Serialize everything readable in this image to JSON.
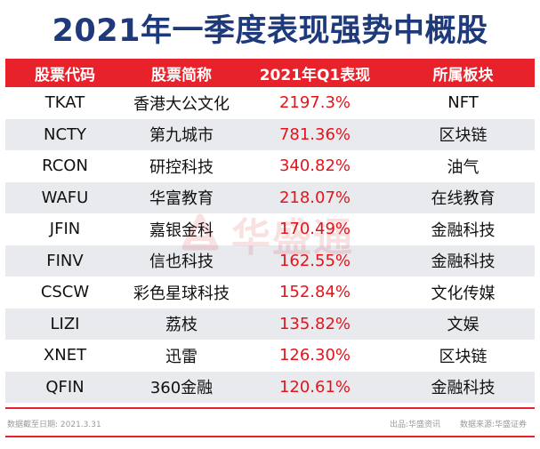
{
  "title": "2021年一季度表现强势中概股",
  "columns": [
    "股票代码",
    "股票简称",
    "2021年Q1表现",
    "所属板块"
  ],
  "rows": [
    {
      "code": "TKAT",
      "name": "香港大公文化",
      "perf": "2197.3%",
      "sector": "NFT"
    },
    {
      "code": "NCTY",
      "name": "第九城市",
      "perf": "781.36%",
      "sector": "区块链"
    },
    {
      "code": "RCON",
      "name": "研控科技",
      "perf": "340.82%",
      "sector": "油气"
    },
    {
      "code": "WAFU",
      "name": "华富教育",
      "perf": "218.07%",
      "sector": "在线教育"
    },
    {
      "code": "JFIN",
      "name": "嘉银金科",
      "perf": "170.49%",
      "sector": "金融科技"
    },
    {
      "code": "FINV",
      "name": "信也科技",
      "perf": "162.55%",
      "sector": "金融科技"
    },
    {
      "code": "CSCW",
      "name": "彩色星球科技",
      "perf": "152.84%",
      "sector": "文化传媒"
    },
    {
      "code": "LIZI",
      "name": "荔枝",
      "perf": "135.82%",
      "sector": "文娱"
    },
    {
      "code": "XNET",
      "name": "迅雷",
      "perf": "126.30%",
      "sector": "区块链"
    },
    {
      "code": "QFIN",
      "name": "360金融",
      "perf": "120.61%",
      "sector": "金融科技"
    }
  ],
  "watermark": "华盛通",
  "footer": {
    "date_label": "数据截至日期:",
    "date_value": "2021.3.31",
    "source_label": "出品:华盛资讯",
    "data_source": "数据来源:华盛证券"
  },
  "colors": {
    "title": "#1f3a7a",
    "header_bg": "#e8222a",
    "performance_text": "#e4141b",
    "alt_row_bg": "#e9eaee"
  }
}
